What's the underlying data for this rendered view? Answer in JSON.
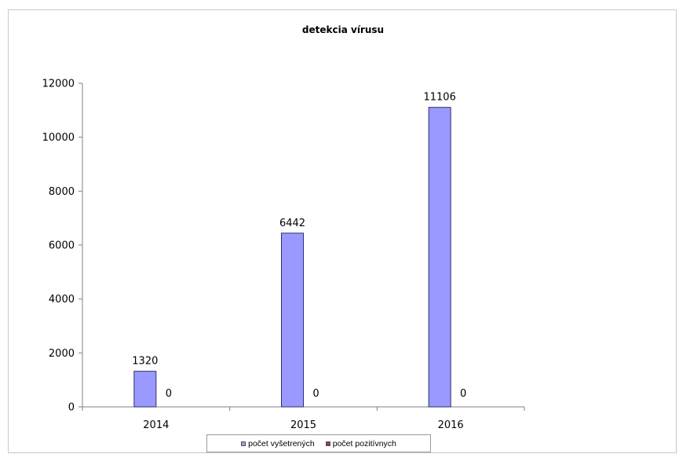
{
  "chart_data": {
    "type": "bar",
    "title": "detekcia vírusu",
    "categories": [
      "2014",
      "2015",
      "2016"
    ],
    "series": [
      {
        "name": "počet vyšetrených",
        "values": [
          1320,
          6442,
          11106
        ],
        "color": "#9999ff"
      },
      {
        "name": "počet pozitívnych",
        "values": [
          0,
          0,
          0
        ],
        "color": "#993366"
      }
    ],
    "ylim": [
      0,
      12000
    ],
    "yticks": [
      "0",
      "2000",
      "4000",
      "6000",
      "8000",
      "10000",
      "12000"
    ],
    "grid": false,
    "legend_position": "bottom"
  }
}
